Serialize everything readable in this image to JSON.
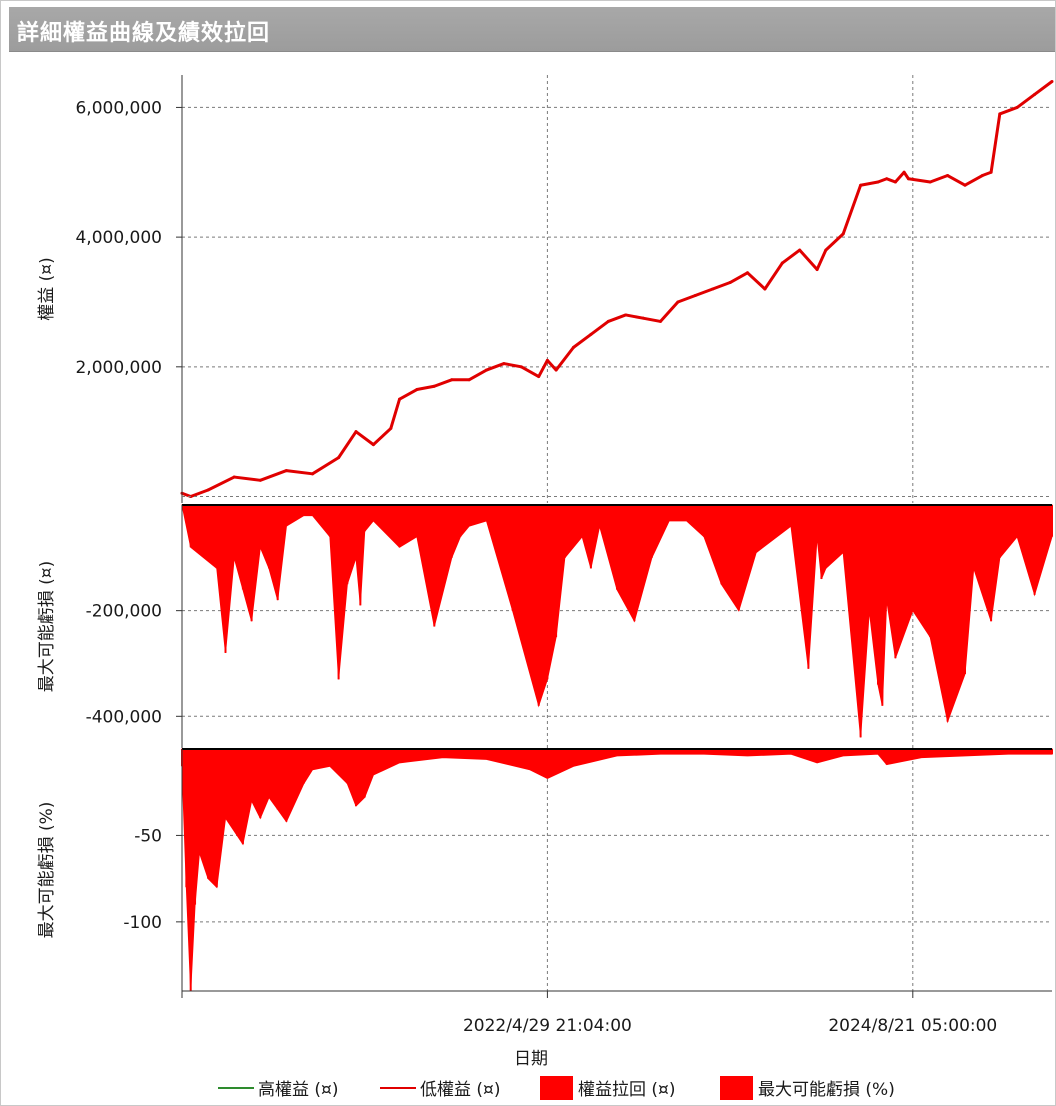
{
  "window": {
    "title": "詳細權益曲線及績效拉回"
  },
  "chart_data": [
    {
      "type": "line",
      "panel": "equity",
      "ylabel": "權益 (¤)",
      "ylim": [
        -100000,
        6500000
      ],
      "yticks": [
        "6,000,000",
        "4,000,000",
        "2,000,000"
      ],
      "ytick_values": [
        6000000,
        4000000,
        2000000
      ],
      "grid": true,
      "series": [
        {
          "name": "高權益 (¤)",
          "color": "#2e8b2e"
        },
        {
          "name": "低權益 (¤)",
          "color": "#e00000",
          "x": [
            0,
            0.01,
            0.03,
            0.06,
            0.09,
            0.12,
            0.15,
            0.18,
            0.2,
            0.22,
            0.24,
            0.25,
            0.27,
            0.29,
            0.31,
            0.33,
            0.35,
            0.37,
            0.39,
            0.41,
            0.42,
            0.43,
            0.45,
            0.47,
            0.49,
            0.51,
            0.53,
            0.55,
            0.57,
            0.59,
            0.61,
            0.63,
            0.65,
            0.67,
            0.69,
            0.71,
            0.73,
            0.74,
            0.76,
            0.78,
            0.8,
            0.81,
            0.82,
            0.83,
            0.835,
            0.86,
            0.88,
            0.9,
            0.92,
            0.93,
            0.94,
            0.96,
            0.98,
            1.0
          ],
          "y": [
            50000,
            0,
            100000,
            300000,
            250000,
            400000,
            350000,
            600000,
            1000000,
            800000,
            1050000,
            1500000,
            1650000,
            1700000,
            1800000,
            1800000,
            1950000,
            2050000,
            2000000,
            1850000,
            2100000,
            1950000,
            2300000,
            2500000,
            2700000,
            2800000,
            2750000,
            2700000,
            3000000,
            3100000,
            3200000,
            3300000,
            3450000,
            3200000,
            3600000,
            3800000,
            3500000,
            3800000,
            4050000,
            4800000,
            4850000,
            4900000,
            4850000,
            5000000,
            4900000,
            4850000,
            4950000,
            4800000,
            4950000,
            5000000,
            5900000,
            6000000,
            6200000,
            6400000
          ]
        }
      ]
    },
    {
      "type": "area",
      "panel": "drawdown",
      "ylabel": "最大可能虧損 (¤)",
      "ylim": [
        -460000,
        0
      ],
      "yticks": [
        "-200,000",
        "-400,000"
      ],
      "ytick_values": [
        -200000,
        -400000
      ],
      "series": [
        {
          "name": "權益拉回 (¤)",
          "color": "#ff0000",
          "x": [
            0,
            0.01,
            0.04,
            0.05,
            0.06,
            0.07,
            0.08,
            0.09,
            0.1,
            0.11,
            0.12,
            0.13,
            0.14,
            0.15,
            0.17,
            0.18,
            0.19,
            0.2,
            0.205,
            0.21,
            0.22,
            0.25,
            0.27,
            0.29,
            0.31,
            0.32,
            0.33,
            0.35,
            0.38,
            0.41,
            0.42,
            0.43,
            0.44,
            0.46,
            0.47,
            0.48,
            0.5,
            0.52,
            0.54,
            0.56,
            0.58,
            0.6,
            0.62,
            0.64,
            0.66,
            0.7,
            0.72,
            0.73,
            0.735,
            0.74,
            0.76,
            0.78,
            0.79,
            0.8,
            0.805,
            0.81,
            0.82,
            0.84,
            0.86,
            0.88,
            0.9,
            0.91,
            0.93,
            0.94,
            0.96,
            0.98,
            1.0
          ],
          "y": [
            0,
            -80000,
            -120000,
            -280000,
            -100000,
            -160000,
            -220000,
            -80000,
            -120000,
            -180000,
            -40000,
            -30000,
            -20000,
            -20000,
            -60000,
            -330000,
            -150000,
            -100000,
            -190000,
            -50000,
            -30000,
            -80000,
            -60000,
            -230000,
            -100000,
            -60000,
            -40000,
            -30000,
            -200000,
            -380000,
            -330000,
            -250000,
            -100000,
            -60000,
            -120000,
            -40000,
            -160000,
            -220000,
            -100000,
            -30000,
            -30000,
            -60000,
            -150000,
            -200000,
            -90000,
            -40000,
            -310000,
            -60000,
            -140000,
            -120000,
            -90000,
            -440000,
            -200000,
            -340000,
            -380000,
            -180000,
            -290000,
            -200000,
            -250000,
            -410000,
            -320000,
            -120000,
            -220000,
            -100000,
            -60000,
            -170000,
            -60000
          ]
        }
      ]
    },
    {
      "type": "area",
      "panel": "drawdown-pct",
      "ylabel": "最大可能虧損 (%)",
      "ylim": [
        -140,
        0
      ],
      "yticks": [
        "-50",
        "-100"
      ],
      "ytick_values": [
        -50,
        -100
      ],
      "xlabel": "日期",
      "xticks": [
        "2022/4/29 21:04:00",
        "2024/8/21 05:00:00"
      ],
      "xtick_positions": [
        0.42,
        0.84
      ],
      "series": [
        {
          "name": "最大可能虧損 (%)",
          "color": "#ff0000",
          "x": [
            0,
            0.005,
            0.01,
            0.015,
            0.02,
            0.03,
            0.04,
            0.05,
            0.07,
            0.08,
            0.09,
            0.1,
            0.11,
            0.12,
            0.14,
            0.15,
            0.17,
            0.19,
            0.2,
            0.21,
            0.22,
            0.25,
            0.3,
            0.35,
            0.4,
            0.42,
            0.45,
            0.5,
            0.55,
            0.6,
            0.65,
            0.7,
            0.73,
            0.76,
            0.8,
            0.81,
            0.85,
            0.9,
            0.95,
            1.0
          ],
          "y": [
            -10,
            -80,
            -140,
            -90,
            -60,
            -75,
            -80,
            -40,
            -55,
            -30,
            -40,
            -28,
            -35,
            -42,
            -20,
            -12,
            -10,
            -20,
            -33,
            -28,
            -15,
            -8,
            -5,
            -6,
            -12,
            -17,
            -10,
            -4,
            -3,
            -3,
            -4,
            -3,
            -8,
            -4,
            -3,
            -9,
            -5,
            -4,
            -3,
            -3
          ]
        }
      ]
    }
  ],
  "legend": {
    "items": [
      {
        "label": "高權益 (¤)",
        "color": "#2e8b2e",
        "kind": "line"
      },
      {
        "label": "低權益 (¤)",
        "color": "#e00000",
        "kind": "line"
      },
      {
        "label": "權益拉回 (¤)",
        "color": "#ff0000",
        "kind": "box"
      },
      {
        "label": "最大可能虧損 (%)",
        "color": "#ff0000",
        "kind": "box"
      }
    ]
  }
}
